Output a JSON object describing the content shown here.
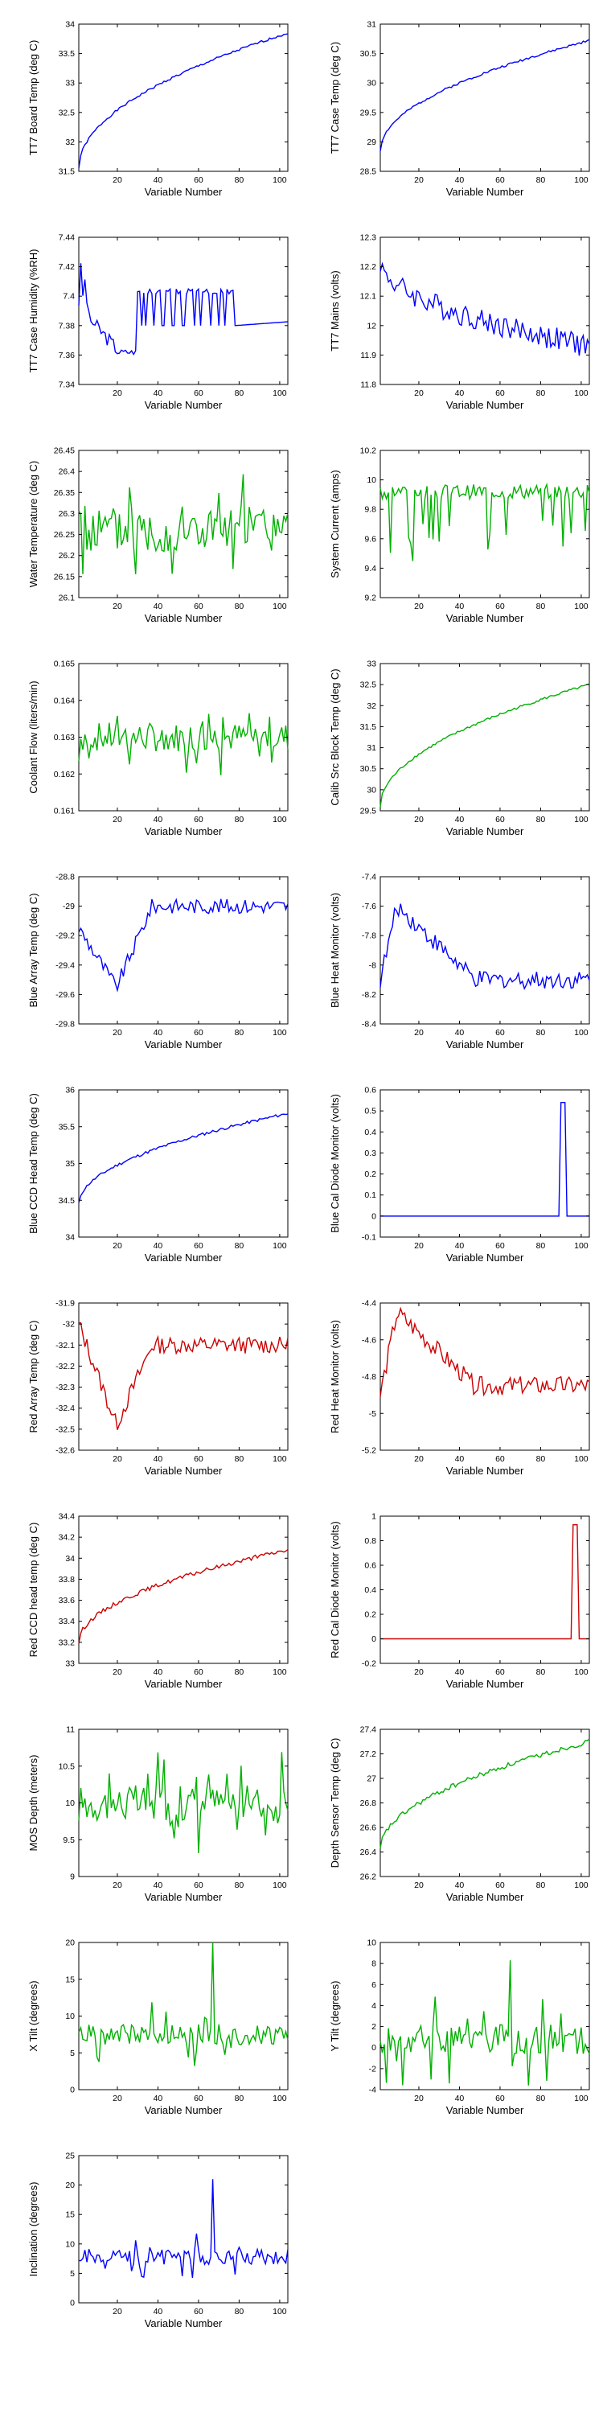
{
  "figure": {
    "background": "#ffffff"
  },
  "chart_data": [
    {
      "type": "line",
      "ylabel": "TT7 Board Temp (deg C)",
      "xlabel": "Variable Number",
      "color": "#0000ff",
      "xlim": [
        1,
        104
      ],
      "xticks": [
        20,
        40,
        60,
        80,
        100
      ],
      "ylim": [
        31.5,
        34
      ],
      "yticks": [
        "31.5",
        "32",
        "32.5",
        "33",
        "33.5",
        "34"
      ],
      "gen": {
        "kind": "trend",
        "y0": 31.55,
        "y1": 33.85,
        "shape": "sqrt",
        "noise": 0.02,
        "seed": 1
      }
    },
    {
      "type": "line",
      "ylabel": "TT7 Case Temp (deg C)",
      "xlabel": "Variable Number",
      "color": "#0000ff",
      "xlim": [
        1,
        104
      ],
      "xticks": [
        20,
        40,
        60,
        80,
        100
      ],
      "ylim": [
        28.5,
        31
      ],
      "yticks": [
        "28.5",
        "29",
        "29.5",
        "30",
        "30.5",
        "31"
      ],
      "gen": {
        "kind": "trend",
        "y0": 28.85,
        "y1": 30.72,
        "shape": "sqrt",
        "noise": 0.02,
        "seed": 2
      }
    },
    {
      "type": "line",
      "ylabel": "TT7 Case Humidity (%RH)",
      "xlabel": "Variable Number",
      "color": "#0000ff",
      "xlim": [
        1,
        104
      ],
      "xticks": [
        20,
        40,
        60,
        80,
        100
      ],
      "ylim": [
        7.34,
        7.44
      ],
      "yticks": [
        "7.34",
        "7.36",
        "7.38",
        "7.4",
        "7.42",
        "7.44"
      ],
      "gen": {
        "kind": "humidity",
        "seed": 3
      }
    },
    {
      "type": "line",
      "ylabel": "TT7 Mains  (volts)",
      "xlabel": "Variable Number",
      "color": "#0000ff",
      "xlim": [
        1,
        104
      ],
      "xticks": [
        20,
        40,
        60,
        80,
        100
      ],
      "ylim": [
        11.8,
        12.3
      ],
      "yticks": [
        "11.8",
        "11.9",
        "12",
        "12.1",
        "12.2",
        "12.3"
      ],
      "gen": {
        "kind": "trend",
        "y0": 12.22,
        "y1": 11.93,
        "shape": "sqrt",
        "noise": 0.04,
        "seed": 4
      }
    },
    {
      "type": "line",
      "ylabel": "Water Temperature (deg C)",
      "xlabel": "Variable Number",
      "color": "#00b000",
      "xlim": [
        1,
        104
      ],
      "xticks": [
        20,
        40,
        60,
        80,
        100
      ],
      "ylim": [
        26.1,
        26.45
      ],
      "yticks": [
        "26.1",
        "26.15",
        "26.2",
        "26.25",
        "26.3",
        "26.35",
        "26.4",
        "26.45"
      ],
      "gen": {
        "kind": "noise",
        "mean": 26.26,
        "amp": 0.06,
        "spike": 0.09,
        "seed": 5
      }
    },
    {
      "type": "line",
      "ylabel": "System Current (amps)",
      "xlabel": "Variable Number",
      "color": "#00b000",
      "xlim": [
        1,
        104
      ],
      "xticks": [
        20,
        40,
        60,
        80,
        100
      ],
      "ylim": [
        9.2,
        10.2
      ],
      "yticks": [
        "9.2",
        "9.4",
        "9.6",
        "9.8",
        "10",
        "10.2"
      ],
      "gen": {
        "kind": "dips",
        "base": 9.92,
        "amp": 0.05,
        "dip": 0.45,
        "seed": 6
      }
    },
    {
      "type": "line",
      "ylabel": "Coolant Flow (liters/min)",
      "xlabel": "Variable Number",
      "color": "#00b000",
      "xlim": [
        1,
        104
      ],
      "xticks": [
        20,
        40,
        60,
        80,
        100
      ],
      "ylim": [
        0.161,
        0.165
      ],
      "yticks": [
        "0.161",
        "0.162",
        "0.163",
        "0.164",
        "0.165"
      ],
      "gen": {
        "kind": "noise",
        "mean": 0.163,
        "amp": 0.0004,
        "spike": 0.0007,
        "seed": 7
      }
    },
    {
      "type": "line",
      "ylabel": "Calib Src Block Temp (deg C)",
      "xlabel": "Variable Number",
      "color": "#00b000",
      "xlim": [
        1,
        104
      ],
      "xticks": [
        20,
        40,
        60,
        80,
        100
      ],
      "ylim": [
        29.5,
        33
      ],
      "yticks": [
        "29.5",
        "30",
        "30.5",
        "31",
        "31.5",
        "32",
        "32.5",
        "33"
      ],
      "gen": {
        "kind": "trend",
        "y0": 29.6,
        "y1": 32.5,
        "shape": "sqrt",
        "noise": 0.03,
        "seed": 8
      }
    },
    {
      "type": "line",
      "ylabel": "Blue Array Temp (deg C)",
      "xlabel": "Variable Number",
      "color": "#0000ff",
      "xlim": [
        1,
        104
      ],
      "xticks": [
        20,
        40,
        60,
        80,
        100
      ],
      "ylim": [
        -29.8,
        -28.8
      ],
      "yticks": [
        "-29.8",
        "-29.6",
        "-29.4",
        "-29.2",
        "-29",
        "-28.8"
      ],
      "gen": {
        "kind": "valley",
        "start": -29.15,
        "low": -29.55,
        "end": -29.0,
        "noise": 0.05,
        "seed": 9
      }
    },
    {
      "type": "line",
      "ylabel": "Blue Heat Monitor (volts)",
      "xlabel": "Variable Number",
      "color": "#0000ff",
      "xlim": [
        1,
        104
      ],
      "xticks": [
        20,
        40,
        60,
        80,
        100
      ],
      "ylim": [
        -8.4,
        -7.4
      ],
      "yticks": [
        "-8.4",
        "-8.2",
        "-8",
        "-7.8",
        "-7.6",
        "-7.4"
      ],
      "gen": {
        "kind": "hump",
        "start": -8.1,
        "peak": -7.6,
        "end": -8.1,
        "noise": 0.06,
        "seed": 10
      }
    },
    {
      "type": "line",
      "ylabel": "Blue CCD Head Temp (deg C)",
      "xlabel": "Variable Number",
      "color": "#0000ff",
      "xlim": [
        1,
        104
      ],
      "xticks": [
        20,
        40,
        60,
        80,
        100
      ],
      "ylim": [
        34,
        36
      ],
      "yticks": [
        "34",
        "34.5",
        "35",
        "35.5",
        "36"
      ],
      "gen": {
        "kind": "trend",
        "y0": 34.45,
        "y1": 35.68,
        "shape": "sqrt",
        "noise": 0.02,
        "seed": 11
      }
    },
    {
      "type": "line",
      "ylabel": "Blue Cal Diode Monitor (volts)",
      "xlabel": "Variable Number",
      "color": "#0000ff",
      "xlim": [
        1,
        104
      ],
      "xticks": [
        20,
        40,
        60,
        80,
        100
      ],
      "ylim": [
        -0.1,
        0.6
      ],
      "yticks": [
        "-0.1",
        "0",
        "0.1",
        "0.2",
        "0.3",
        "0.4",
        "0.5",
        "0.6"
      ],
      "gen": {
        "kind": "pulse",
        "base": 0,
        "start": 90,
        "end": 92,
        "height": 0.54,
        "seed": 12
      }
    },
    {
      "type": "line",
      "ylabel": "Red Array Temp (deg C)",
      "xlabel": "Variable Number",
      "color": "#cc0000",
      "xlim": [
        1,
        104
      ],
      "xticks": [
        20,
        40,
        60,
        80,
        100
      ],
      "ylim": [
        -32.6,
        -31.9
      ],
      "yticks": [
        "-32.6",
        "-32.5",
        "-32.4",
        "-32.3",
        "-32.2",
        "-32.1",
        "-32",
        "-31.9"
      ],
      "gen": {
        "kind": "valley",
        "start": -32.0,
        "low": -32.48,
        "end": -32.1,
        "noise": 0.04,
        "seed": 13
      }
    },
    {
      "type": "line",
      "ylabel": "Red Heat Monitor (volts)",
      "xlabel": "Variable Number",
      "color": "#cc0000",
      "xlim": [
        1,
        104
      ],
      "xticks": [
        20,
        40,
        60,
        80,
        100
      ],
      "ylim": [
        -5.2,
        -4.4
      ],
      "yticks": [
        "-5.2",
        "-5",
        "-4.8",
        "-4.6",
        "-4.4"
      ],
      "gen": {
        "kind": "hump",
        "start": -4.9,
        "peak": -4.45,
        "end": -4.85,
        "noise": 0.05,
        "seed": 14
      }
    },
    {
      "type": "line",
      "ylabel": "Red CCD head temp (deg C)",
      "xlabel": "Variable Number",
      "color": "#cc0000",
      "xlim": [
        1,
        104
      ],
      "xticks": [
        20,
        40,
        60,
        80,
        100
      ],
      "ylim": [
        33,
        34.4
      ],
      "yticks": [
        "33",
        "33.2",
        "33.4",
        "33.6",
        "33.8",
        "34",
        "34.2",
        "34.4"
      ],
      "gen": {
        "kind": "trend",
        "y0": 33.2,
        "y1": 34.08,
        "shape": "sqrt",
        "noise": 0.02,
        "seed": 15
      }
    },
    {
      "type": "line",
      "ylabel": "Red Cal Diode Monitor (volts)",
      "xlabel": "Variable Number",
      "color": "#cc0000",
      "xlim": [
        1,
        104
      ],
      "xticks": [
        20,
        40,
        60,
        80,
        100
      ],
      "ylim": [
        -0.2,
        1
      ],
      "yticks": [
        "-0.2",
        "0",
        "0.2",
        "0.4",
        "0.6",
        "0.8",
        "1"
      ],
      "gen": {
        "kind": "pulse",
        "base": 0,
        "start": 96,
        "end": 98,
        "height": 0.93,
        "seed": 16
      }
    },
    {
      "type": "line",
      "ylabel": "MOS Depth  (meters)",
      "xlabel": "Variable Number",
      "color": "#00b000",
      "xlim": [
        1,
        104
      ],
      "xticks": [
        20,
        40,
        60,
        80,
        100
      ],
      "ylim": [
        9,
        11
      ],
      "yticks": [
        "9",
        "9.5",
        "10",
        "10.5",
        "11"
      ],
      "gen": {
        "kind": "noise",
        "mean": 10.0,
        "amp": 0.25,
        "spike": 0.45,
        "seed": 17
      }
    },
    {
      "type": "line",
      "ylabel": "Depth Sensor Temp (deg C)",
      "xlabel": "Variable Number",
      "color": "#00b000",
      "xlim": [
        1,
        104
      ],
      "xticks": [
        20,
        40,
        60,
        80,
        100
      ],
      "ylim": [
        26.2,
        27.4
      ],
      "yticks": [
        "26.2",
        "26.4",
        "26.6",
        "26.8",
        "27",
        "27.2",
        "27.4"
      ],
      "gen": {
        "kind": "trend",
        "y0": 26.42,
        "y1": 27.3,
        "shape": "sqrt",
        "noise": 0.02,
        "seed": 18
      }
    },
    {
      "type": "line",
      "ylabel": "X Tilt  (degrees)",
      "xlabel": "Variable Number",
      "color": "#00b000",
      "xlim": [
        1,
        104
      ],
      "xticks": [
        20,
        40,
        60,
        80,
        100
      ],
      "ylim": [
        0,
        20
      ],
      "yticks": [
        "0",
        "5",
        "10",
        "15",
        "20"
      ],
      "gen": {
        "kind": "noise",
        "mean": 7.5,
        "amp": 1.4,
        "spike": 3.0,
        "seed": 19,
        "peak": {
          "x": 67,
          "y": 20
        }
      }
    },
    {
      "type": "line",
      "ylabel": "Y Tilt  (degrees)",
      "xlabel": "Variable Number",
      "color": "#00b000",
      "xlim": [
        1,
        104
      ],
      "xticks": [
        20,
        40,
        60,
        80,
        100
      ],
      "ylim": [
        -4,
        10
      ],
      "yticks": [
        "-4",
        "-2",
        "0",
        "2",
        "4",
        "6",
        "8",
        "10"
      ],
      "gen": {
        "kind": "noise",
        "mean": 0.8,
        "amp": 1.4,
        "spike": 3.0,
        "seed": 20,
        "peak": {
          "x": 65,
          "y": 8.3
        }
      }
    },
    {
      "type": "line",
      "ylabel": "Inclination  (degrees)",
      "xlabel": "Variable Number",
      "color": "#0000ff",
      "xlim": [
        1,
        104
      ],
      "xticks": [
        20,
        40,
        60,
        80,
        100
      ],
      "ylim": [
        0,
        25
      ],
      "yticks": [
        "0",
        "5",
        "10",
        "15",
        "20",
        "25"
      ],
      "gen": {
        "kind": "noise",
        "mean": 7.8,
        "amp": 1.3,
        "spike": 2.8,
        "seed": 21,
        "peak": {
          "x": 67,
          "y": 21
        }
      }
    }
  ]
}
